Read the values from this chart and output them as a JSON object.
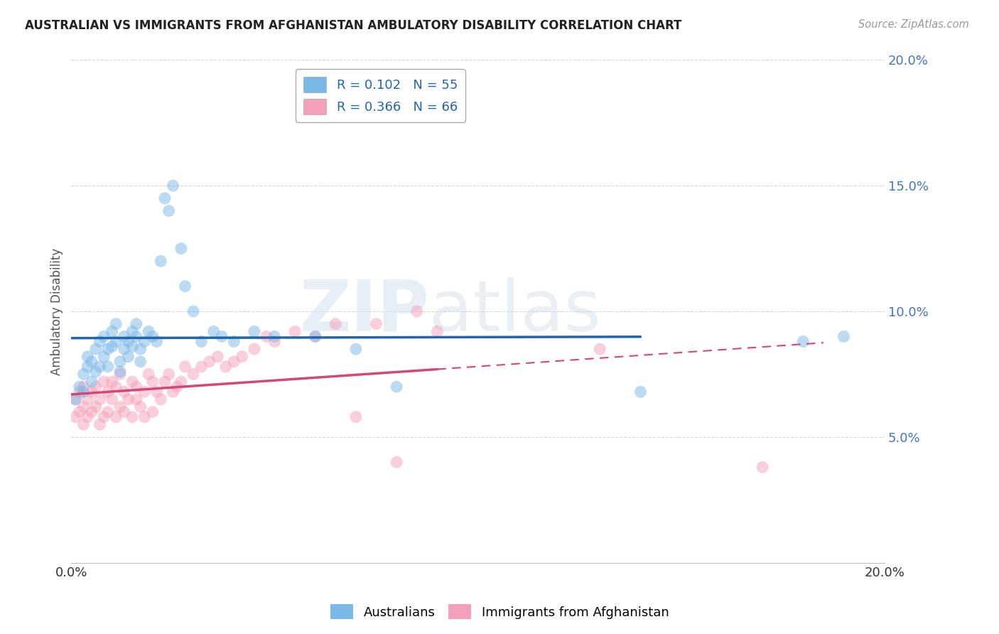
{
  "title": "AUSTRALIAN VS IMMIGRANTS FROM AFGHANISTAN AMBULATORY DISABILITY CORRELATION CHART",
  "source": "Source: ZipAtlas.com",
  "ylabel": "Ambulatory Disability",
  "xlim": [
    0.0,
    0.2
  ],
  "ylim": [
    0.0,
    0.2
  ],
  "ytick_vals": [
    0.05,
    0.1,
    0.15,
    0.2
  ],
  "ytick_labels": [
    "5.0%",
    "10.0%",
    "15.0%",
    "20.0%"
  ],
  "xtick_vals": [
    0.0,
    0.05,
    0.1,
    0.15,
    0.2
  ],
  "xtick_labels": [
    "0.0%",
    "",
    "",
    "",
    "20.0%"
  ],
  "legend_labels": [
    "Australians",
    "Immigrants from Afghanistan"
  ],
  "R_australian": 0.102,
  "N_australian": 55,
  "R_afghanistan": 0.366,
  "N_afghanistan": 66,
  "australian_color": "#7ab8e8",
  "afghanistan_color": "#f4a0b8",
  "trend_australian_color": "#2166ac",
  "trend_afghanistan_color": "#d44878",
  "background_color": "#ffffff",
  "grid_color": "#cccccc",
  "australian_x": [
    0.001,
    0.002,
    0.003,
    0.003,
    0.004,
    0.004,
    0.005,
    0.005,
    0.006,
    0.006,
    0.007,
    0.007,
    0.008,
    0.008,
    0.009,
    0.009,
    0.01,
    0.01,
    0.011,
    0.011,
    0.012,
    0.012,
    0.013,
    0.013,
    0.014,
    0.014,
    0.015,
    0.015,
    0.016,
    0.016,
    0.017,
    0.017,
    0.018,
    0.019,
    0.02,
    0.021,
    0.022,
    0.023,
    0.024,
    0.025,
    0.027,
    0.028,
    0.03,
    0.032,
    0.035,
    0.037,
    0.04,
    0.045,
    0.05,
    0.06,
    0.07,
    0.08,
    0.14,
    0.18,
    0.19
  ],
  "australian_y": [
    0.065,
    0.07,
    0.075,
    0.068,
    0.082,
    0.078,
    0.072,
    0.08,
    0.085,
    0.076,
    0.078,
    0.088,
    0.09,
    0.082,
    0.085,
    0.078,
    0.092,
    0.086,
    0.088,
    0.095,
    0.08,
    0.076,
    0.09,
    0.085,
    0.088,
    0.082,
    0.092,
    0.086,
    0.09,
    0.095,
    0.085,
    0.08,
    0.088,
    0.092,
    0.09,
    0.088,
    0.12,
    0.145,
    0.14,
    0.15,
    0.125,
    0.11,
    0.1,
    0.088,
    0.092,
    0.09,
    0.088,
    0.092,
    0.09,
    0.09,
    0.085,
    0.07,
    0.068,
    0.088,
    0.09
  ],
  "afghanistan_x": [
    0.001,
    0.001,
    0.002,
    0.002,
    0.003,
    0.003,
    0.003,
    0.004,
    0.004,
    0.005,
    0.005,
    0.006,
    0.006,
    0.007,
    0.007,
    0.008,
    0.008,
    0.009,
    0.009,
    0.01,
    0.01,
    0.011,
    0.011,
    0.012,
    0.012,
    0.013,
    0.013,
    0.014,
    0.015,
    0.015,
    0.016,
    0.016,
    0.017,
    0.018,
    0.018,
    0.019,
    0.02,
    0.02,
    0.021,
    0.022,
    0.023,
    0.024,
    0.025,
    0.026,
    0.027,
    0.028,
    0.03,
    0.032,
    0.034,
    0.036,
    0.038,
    0.04,
    0.042,
    0.045,
    0.048,
    0.05,
    0.055,
    0.06,
    0.065,
    0.07,
    0.075,
    0.08,
    0.085,
    0.09,
    0.13,
    0.17
  ],
  "afghanistan_y": [
    0.058,
    0.065,
    0.06,
    0.068,
    0.055,
    0.062,
    0.07,
    0.058,
    0.065,
    0.06,
    0.068,
    0.062,
    0.07,
    0.055,
    0.065,
    0.058,
    0.072,
    0.06,
    0.068,
    0.065,
    0.072,
    0.058,
    0.07,
    0.062,
    0.075,
    0.06,
    0.068,
    0.065,
    0.058,
    0.072,
    0.065,
    0.07,
    0.062,
    0.058,
    0.068,
    0.075,
    0.06,
    0.072,
    0.068,
    0.065,
    0.072,
    0.075,
    0.068,
    0.07,
    0.072,
    0.078,
    0.075,
    0.078,
    0.08,
    0.082,
    0.078,
    0.08,
    0.082,
    0.085,
    0.09,
    0.088,
    0.092,
    0.09,
    0.095,
    0.058,
    0.095,
    0.04,
    0.1,
    0.092,
    0.085,
    0.038
  ]
}
